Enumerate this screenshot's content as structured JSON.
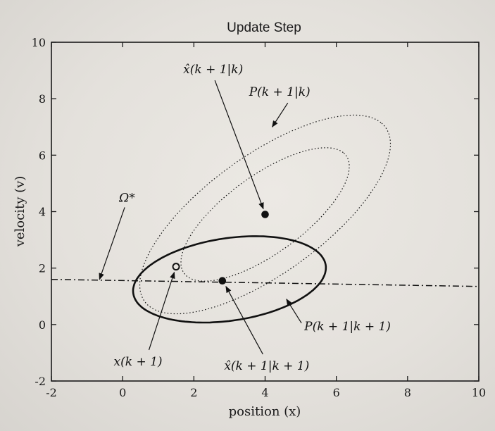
{
  "chart_data": {
    "type": "scatter",
    "title": "Update Step",
    "xlabel": "position (x)",
    "ylabel": "velocity (v)",
    "xlim": [
      -2,
      10
    ],
    "ylim": [
      -2,
      10
    ],
    "xticks": [
      "-2",
      "0",
      "2",
      "4",
      "6",
      "8",
      "10"
    ],
    "yticks": [
      "-2",
      "0",
      "2",
      "4",
      "6",
      "8",
      "10"
    ],
    "grid": false,
    "points": [
      {
        "name": "x̂(k+1|k)",
        "x": 4.0,
        "y": 3.9,
        "style": "filled"
      },
      {
        "name": "x̂(k+1|k+1)",
        "x": 2.8,
        "y": 1.55,
        "style": "filled"
      },
      {
        "name": "x(k+1)",
        "x": 1.5,
        "y": 2.05,
        "style": "open"
      }
    ],
    "line": {
      "name": "Ω*",
      "style": "dash-dot",
      "x": [
        -2,
        10
      ],
      "y": [
        1.6,
        1.35
      ]
    },
    "ellipses": [
      {
        "name": "P(k+1|k) inner",
        "style": "dotted",
        "center": [
          4.0,
          3.9
        ],
        "semi_major": 3.1,
        "semi_minor": 1.25,
        "angle_deg": 45
      },
      {
        "name": "P(k+1|k) outer",
        "style": "dotted",
        "center": [
          4.0,
          3.9
        ],
        "semi_major": 4.6,
        "semi_minor": 1.9,
        "angle_deg": 45
      },
      {
        "name": "P(k+1|k+1)",
        "style": "solid",
        "center": [
          3.0,
          1.6
        ],
        "semi_major": 2.75,
        "semi_minor": 1.45,
        "angle_deg": 12
      }
    ],
    "annotations": [
      {
        "id": "xhat_kk",
        "label": "x̂(k + 1|k)",
        "tx": 1.7,
        "ty": 8.9,
        "ax": 3.95,
        "ay": 4.1
      },
      {
        "id": "p_kk",
        "label": "P(k + 1|k)",
        "tx": 3.55,
        "ty": 8.1,
        "ax": 4.2,
        "ay": 7.0
      },
      {
        "id": "omega",
        "label": "Ω*",
        "tx": -0.1,
        "ty": 4.35,
        "ax": -0.65,
        "ay": 1.6
      },
      {
        "id": "x_k1",
        "label": "x(k + 1)",
        "tx": -0.25,
        "ty": -1.45,
        "ax": 1.45,
        "ay": 1.85
      },
      {
        "id": "xhat_kk1",
        "label": "x̂(k + 1|k + 1)",
        "tx": 2.85,
        "ty": -1.6,
        "ax": 2.9,
        "ay": 1.35
      },
      {
        "id": "p_kk1",
        "label": "P(k + 1|k + 1)",
        "tx": 5.1,
        "ty": -0.2,
        "ax": 4.6,
        "ay": 0.9
      }
    ]
  }
}
